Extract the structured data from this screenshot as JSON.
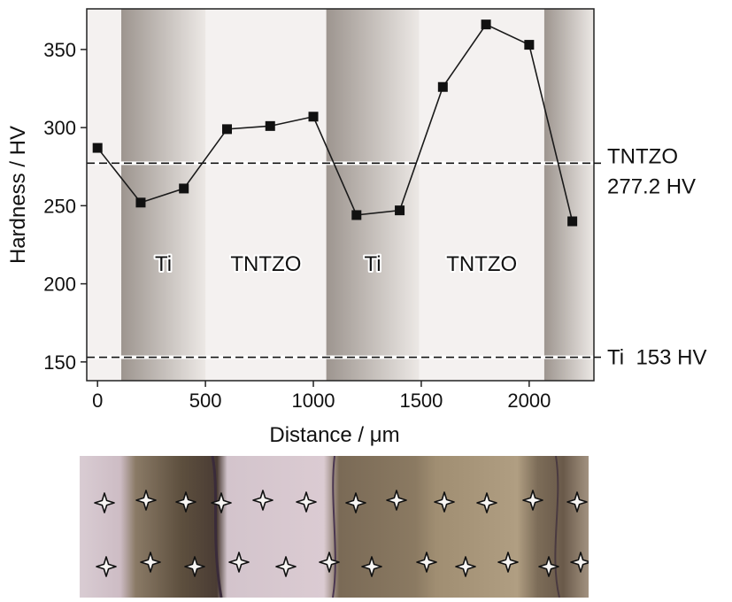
{
  "chart_data": {
    "type": "line",
    "title": "",
    "xlabel": "Distance / μm",
    "ylabel": "Hardness / HV",
    "xlim": [
      -50,
      2300
    ],
    "ylim": [
      138,
      376
    ],
    "xticks": [
      0,
      500,
      1000,
      1500,
      2000
    ],
    "yticks": [
      150,
      200,
      250,
      300,
      350
    ],
    "x": [
      0,
      200,
      400,
      600,
      800,
      1000,
      1200,
      1400,
      1600,
      1800,
      2000,
      2200
    ],
    "series": [
      {
        "name": "",
        "values": [
          287,
          252,
          261,
          299,
          301,
          307,
          244,
          247,
          326,
          366,
          353,
          240
        ]
      }
    ],
    "reference_lines": [
      {
        "value": 277.2,
        "label_line1": "TNTZO",
        "label_line2": "277.2 HV"
      },
      {
        "value": 153,
        "label_line1": "Ti  153 HV"
      }
    ],
    "regions": [
      {
        "label": "Ti",
        "from": 110,
        "to": 500,
        "shaded": true
      },
      {
        "label": "TNTZO",
        "from": 500,
        "to": 1060,
        "shaded": false
      },
      {
        "label": "Ti",
        "from": 1060,
        "to": 1490,
        "shaded": true
      },
      {
        "label": "TNTZO",
        "from": 1490,
        "to": 2070,
        "shaded": false
      },
      {
        "label": "",
        "from": 2070,
        "to": 2300,
        "shaded": true
      }
    ],
    "grid": false,
    "colors": {
      "line": "#1a1a1a",
      "marker": "#111111",
      "shade_dark": "#a39a94",
      "shade_light": "#eae6e3",
      "background": "#f4f1f0"
    }
  },
  "micrograph": {
    "indent_rows": 2,
    "indents_per_row": 12
  }
}
